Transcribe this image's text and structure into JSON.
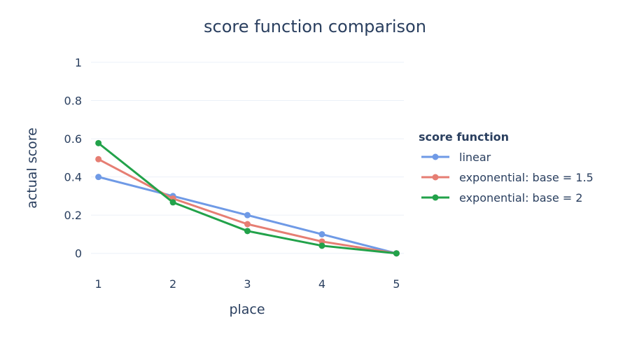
{
  "chart_data": {
    "type": "line",
    "title": "score function comparison",
    "xlabel": "place",
    "ylabel": "actual score",
    "x": [
      1,
      2,
      3,
      4,
      5
    ],
    "xlim": [
      0.9,
      5.1
    ],
    "ylim": [
      -0.1,
      1.0
    ],
    "y_ticks": [
      0,
      0.2,
      0.4,
      0.6,
      0.8,
      1
    ],
    "y_tick_labels": [
      "0",
      "0.2",
      "0.4",
      "0.6",
      "0.8",
      "1"
    ],
    "x_tick_labels": [
      "1",
      "2",
      "3",
      "4",
      "5"
    ],
    "grid": true,
    "legend": {
      "title": "score function",
      "placement": "right"
    },
    "series": [
      {
        "name": "linear",
        "color": "#6f9ae6",
        "values": [
          0.4,
          0.3,
          0.2,
          0.1,
          0.0
        ]
      },
      {
        "name": "exponential: base = 1.5",
        "color": "#e67e73",
        "values": [
          0.493,
          0.287,
          0.153,
          0.062,
          0.0
        ]
      },
      {
        "name": "exponential: base = 2",
        "color": "#22a24a",
        "values": [
          0.577,
          0.267,
          0.117,
          0.04,
          0.0
        ]
      }
    ]
  }
}
